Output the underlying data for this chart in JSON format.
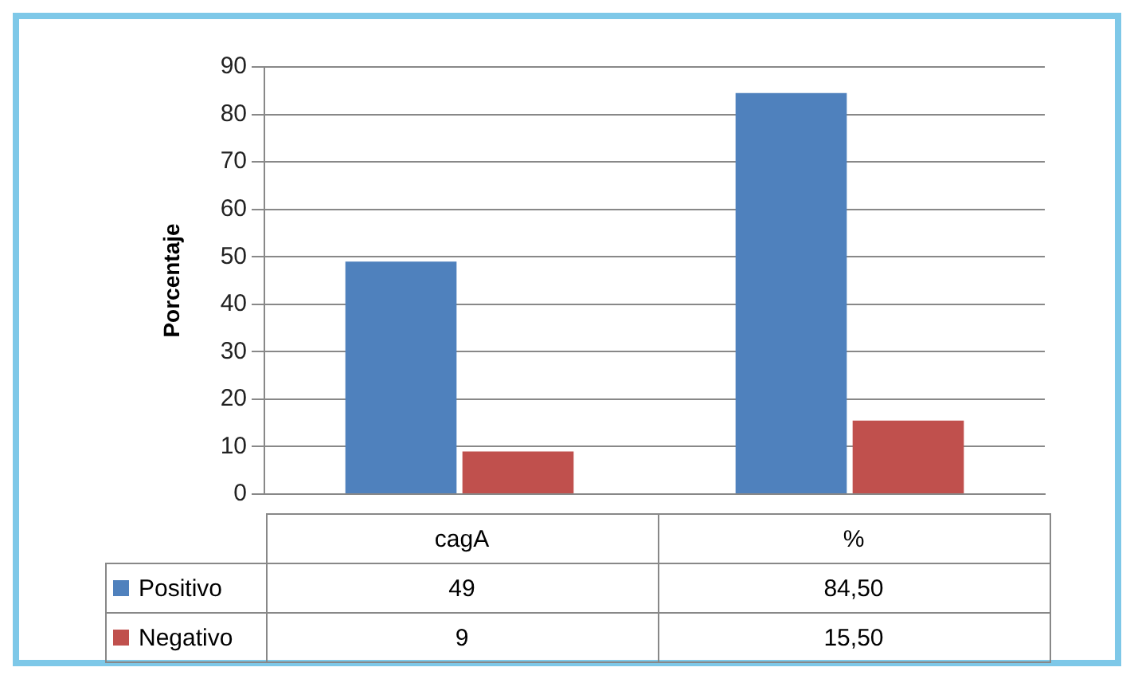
{
  "chart_data": {
    "type": "bar",
    "ylabel": "Porcentaje",
    "categories": [
      "cagA",
      "%"
    ],
    "series": [
      {
        "name": "Positivo",
        "color": "#4f81bd",
        "values": [
          49,
          84.5
        ],
        "value_labels": [
          "49",
          "84,50"
        ]
      },
      {
        "name": "Negativo",
        "color": "#c0504d",
        "values": [
          9,
          15.5
        ],
        "value_labels": [
          "9",
          "15,50"
        ]
      }
    ],
    "ylim": [
      0,
      90
    ],
    "yticks": [
      0,
      10,
      20,
      30,
      40,
      50,
      60,
      70,
      80,
      90
    ],
    "grid": "y",
    "legend": "bottom"
  }
}
